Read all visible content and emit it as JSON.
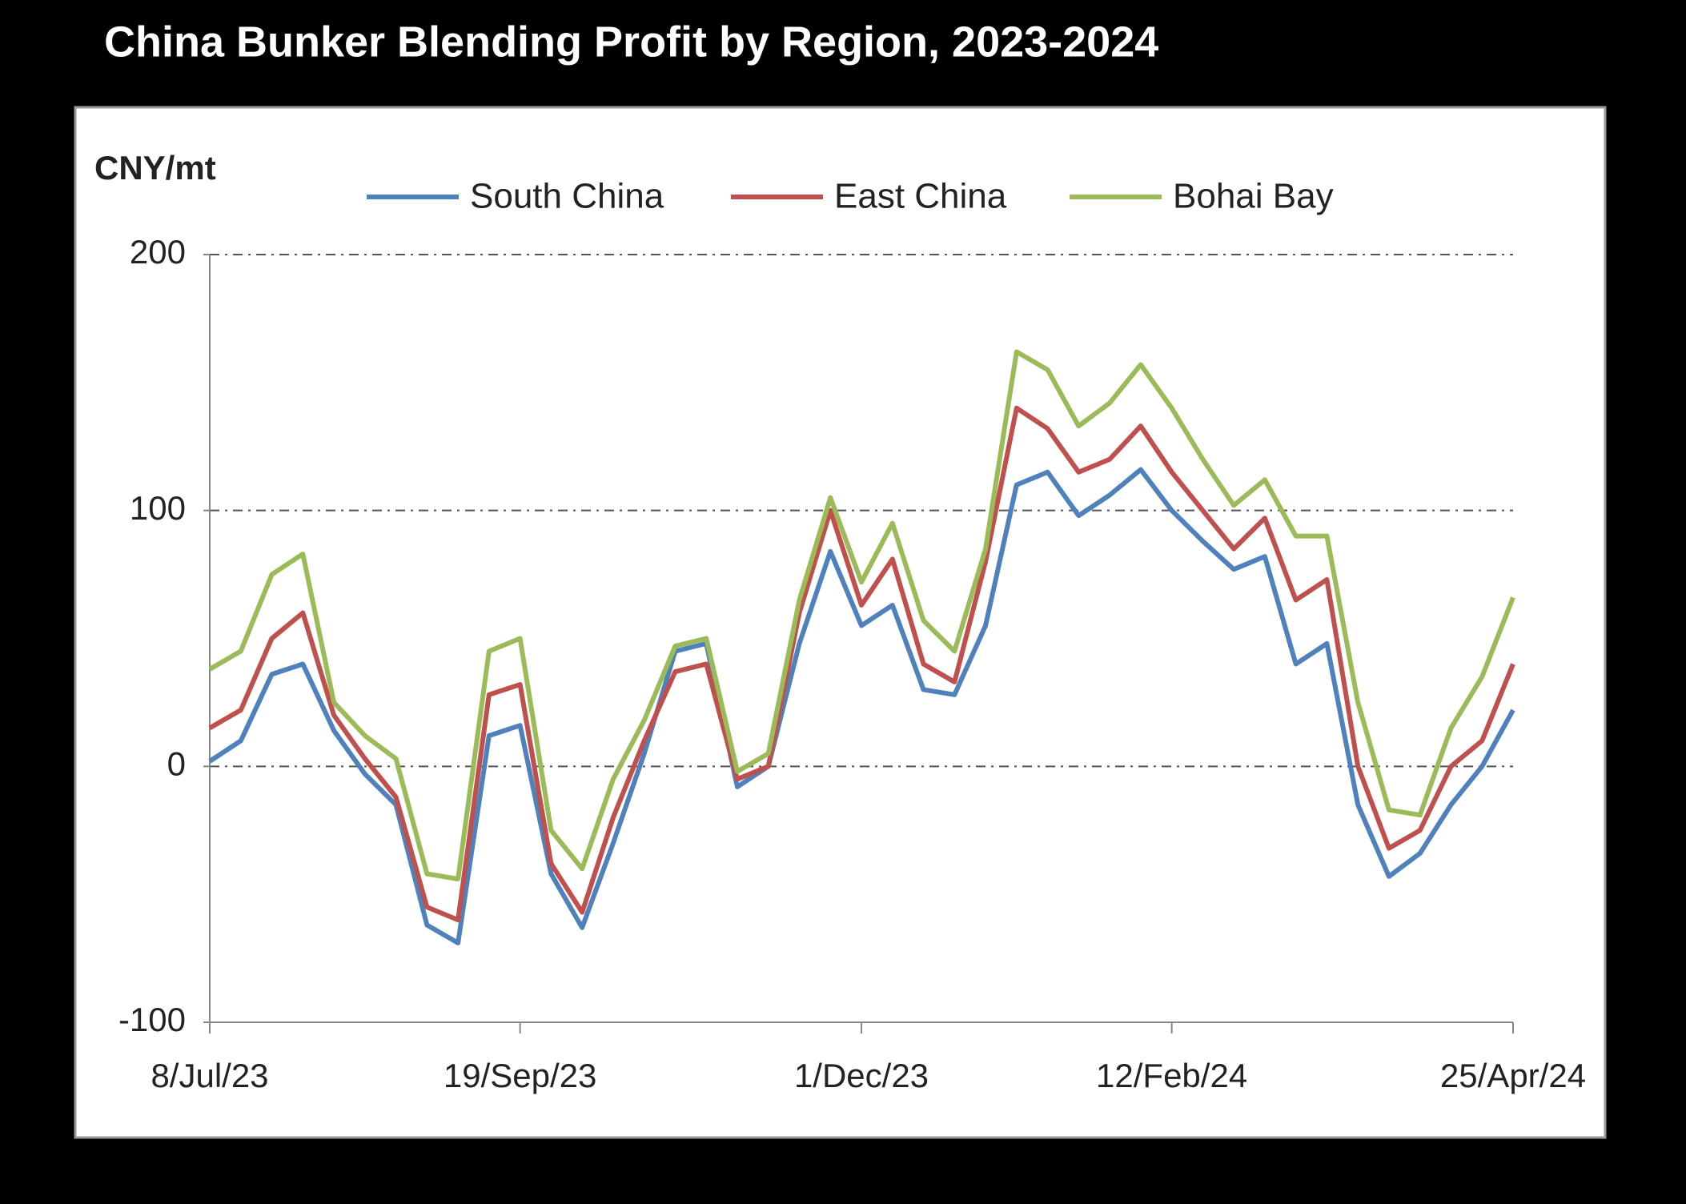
{
  "chart_data": {
    "type": "line",
    "title": "China Bunker Blending Profit by Region, 2023-2024",
    "y_label": "CNY/mt",
    "categories": [
      "8/Jul/23",
      null,
      null,
      null,
      null,
      null,
      null,
      null,
      null,
      null,
      "19/Sep/23",
      null,
      null,
      null,
      null,
      null,
      null,
      null,
      null,
      null,
      null,
      "1/Dec/23",
      null,
      null,
      null,
      null,
      null,
      null,
      null,
      null,
      null,
      "12/Feb/24",
      null,
      null,
      null,
      null,
      null,
      null,
      null,
      null,
      null,
      null,
      "25/Apr/24"
    ],
    "series": [
      {
        "name": "South China",
        "color": "#4f81bd",
        "values": [
          2,
          10,
          36,
          40,
          14,
          -3,
          -15,
          -62,
          -69,
          12,
          16,
          -42,
          -63,
          -30,
          5,
          45,
          48,
          -8,
          0,
          48,
          84,
          55,
          63,
          30,
          28,
          55,
          110,
          115,
          98,
          106,
          116,
          100,
          88,
          77,
          82,
          40,
          48,
          -15,
          -43,
          -34,
          -15,
          0,
          22
        ]
      },
      {
        "name": "East China",
        "color": "#c0504d",
        "values": [
          15,
          22,
          50,
          60,
          20,
          3,
          -12,
          -55,
          -60,
          28,
          32,
          -38,
          -57,
          -20,
          10,
          37,
          40,
          -5,
          0,
          60,
          100,
          63,
          81,
          40,
          33,
          80,
          140,
          132,
          115,
          120,
          133,
          115,
          100,
          85,
          97,
          65,
          73,
          0,
          -32,
          -25,
          0,
          10,
          40
        ]
      },
      {
        "name": "Bohai Bay",
        "color": "#9bbb59",
        "values": [
          38,
          45,
          75,
          83,
          25,
          12,
          3,
          -42,
          -44,
          45,
          50,
          -25,
          -40,
          -5,
          18,
          47,
          50,
          -2,
          5,
          65,
          105,
          72,
          95,
          57,
          45,
          85,
          162,
          155,
          133,
          142,
          157,
          140,
          120,
          102,
          112,
          90,
          90,
          25,
          -17,
          -19,
          15,
          35,
          66
        ]
      }
    ],
    "ylim": [
      -100,
      200
    ],
    "yticks": [
      -100,
      0,
      100,
      200
    ],
    "grid": true
  }
}
